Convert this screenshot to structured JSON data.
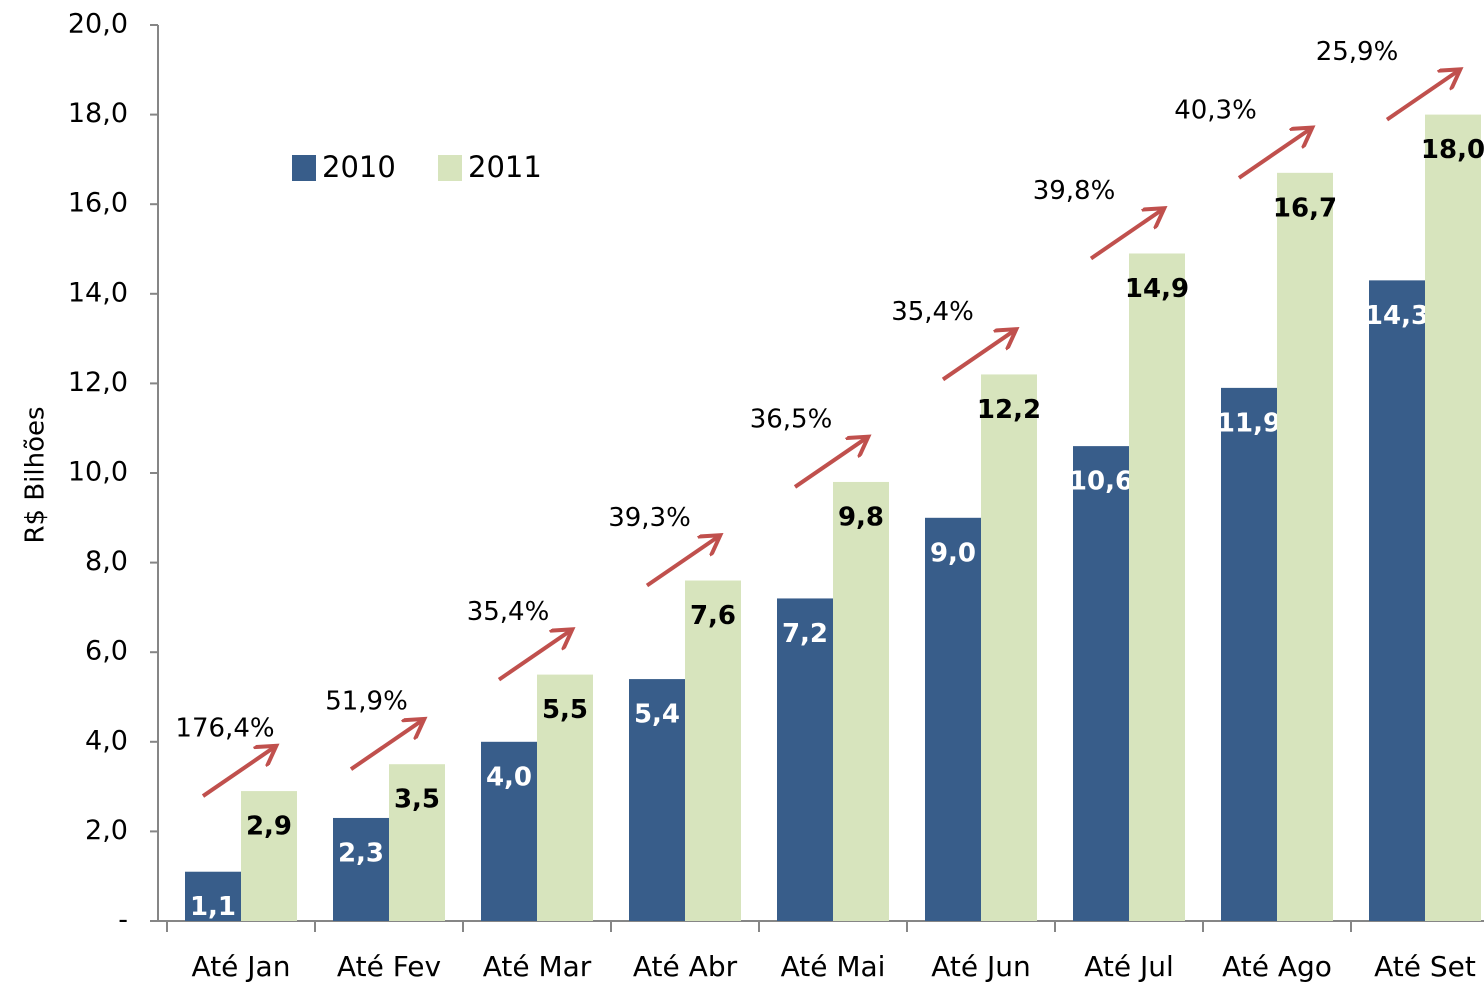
{
  "chart_data": {
    "type": "bar",
    "y_axis_label": "R$ Bilhões",
    "categories": [
      "Até Jan",
      "Até Fev",
      "Até Mar",
      "Até Abr",
      "Até Mai",
      "Até Jun",
      "Até Jul",
      "Até Ago",
      "Até Set"
    ],
    "series": [
      {
        "name": "2010",
        "color": "#385d8a",
        "label_color": "#ffffff",
        "values": [
          1.1,
          2.3,
          4.0,
          5.4,
          7.2,
          9.0,
          10.6,
          11.9,
          14.3
        ],
        "value_labels": [
          "1,1",
          "2,3",
          "4,0",
          "5,4",
          "7,2",
          "9,0",
          "10,6",
          "11,9",
          "14,3"
        ]
      },
      {
        "name": "2011",
        "color": "#d7e4bd",
        "label_color": "#000000",
        "values": [
          2.9,
          3.5,
          5.5,
          7.6,
          9.8,
          12.2,
          14.9,
          16.7,
          18.0
        ],
        "value_labels": [
          "2,9",
          "3,5",
          "5,5",
          "7,6",
          "9,8",
          "12,2",
          "14,9",
          "16,7",
          "18,0"
        ]
      }
    ],
    "growth": {
      "color": "#c0504d",
      "values": [
        176.4,
        51.9,
        35.4,
        39.3,
        36.5,
        35.4,
        39.8,
        40.3,
        25.9
      ],
      "value_labels": [
        "176,4%",
        "51,9%",
        "35,4%",
        "39,3%",
        "36,5%",
        "35,4%",
        "39,8%",
        "40,3%",
        "25,9%"
      ]
    },
    "ylim": [
      0,
      20
    ],
    "yticks": [
      {
        "value": 0,
        "label": "-"
      },
      {
        "value": 2,
        "label": "2,0"
      },
      {
        "value": 4,
        "label": "4,0"
      },
      {
        "value": 6,
        "label": "6,0"
      },
      {
        "value": 8,
        "label": "8,0"
      },
      {
        "value": 10,
        "label": "10,0"
      },
      {
        "value": 12,
        "label": "12,0"
      },
      {
        "value": 14,
        "label": "14,0"
      },
      {
        "value": 16,
        "label": "16,0"
      },
      {
        "value": 18,
        "label": "18,0"
      },
      {
        "value": 20,
        "label": "20,0"
      }
    ],
    "grid": false,
    "legend": "top-left"
  }
}
